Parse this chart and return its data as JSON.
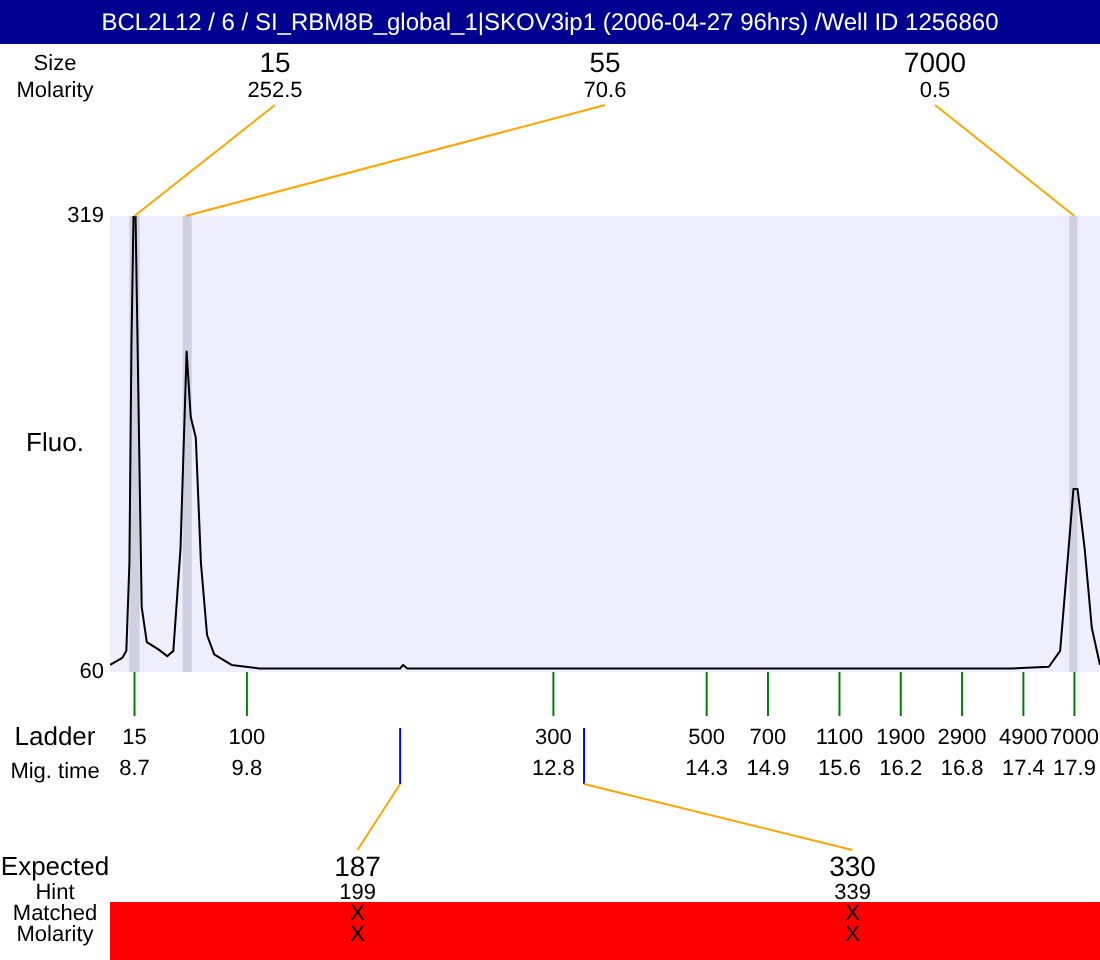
{
  "chart_data": {
    "type": "line",
    "title": "BCL2L12 / 6 / SI_RBM8B_global_1|SKOV3ip1 (2006-04-27 96hrs) /Well ID 1256860",
    "xlabel": "Mig. time",
    "ylabel": "Fluo.",
    "x": [
      8.46,
      8.58,
      8.62,
      8.65,
      8.67,
      8.69,
      8.71,
      8.73,
      8.77,
      8.82,
      8.93,
      9.02,
      9.08,
      9.15,
      9.19,
      9.21,
      9.25,
      9.3,
      9.35,
      9.41,
      9.48,
      9.65,
      9.92,
      11.3,
      11.33,
      11.37,
      13.08,
      17.28,
      17.65,
      17.76,
      17.82,
      17.89,
      17.93,
      18.0,
      18.07,
      18.15
    ],
    "series": [
      {
        "color": "#000000",
        "values": [
          64,
          68,
          72,
          122,
          246,
          319,
          319,
          246,
          97,
          77,
          73,
          69,
          72,
          130,
          205,
          242,
          205,
          193,
          122,
          81,
          70,
          64,
          62,
          62,
          64,
          62,
          62,
          62,
          63,
          72,
          114,
          164,
          164,
          130,
          85,
          64
        ]
      }
    ],
    "xlim": [
      8.46,
      18.15
    ],
    "xticks": [
      8.7,
      9.8,
      12.8,
      14.3,
      14.9,
      15.6,
      16.2,
      16.8,
      17.4,
      17.9
    ],
    "ylim": [
      60,
      319
    ],
    "yticks": [
      60,
      319
    ],
    "bands": [
      {
        "axis": "x",
        "from": 8.65,
        "to": 8.75,
        "color": "#d0d0e0"
      },
      {
        "axis": "x",
        "from": 9.17,
        "to": 9.26,
        "color": "#d0d0e0"
      },
      {
        "axis": "x",
        "from": 17.85,
        "to": 17.93,
        "color": "#d0d0e0"
      }
    ],
    "grid": false,
    "legend": false,
    "marker": "none",
    "line_style": "solid",
    "annotations": [
      "Size",
      "Molarity",
      {
        "text": "15",
        "x": 8.7,
        "y": 319
      },
      "252.5",
      {
        "text": "55",
        "x": 9.2,
        "y": 319
      },
      "70.6",
      {
        "text": "7000",
        "x": 17.9,
        "y": 319
      },
      "0.5",
      "Expected",
      "Hint",
      "Matched",
      "Molarity",
      {
        "text": "187",
        "x": 11.3
      },
      "199",
      "X",
      "X",
      {
        "text": "330",
        "x": 13.1
      },
      "339",
      "X",
      "X",
      "Ladder",
      "15",
      "100",
      "300",
      "500",
      "700",
      "1100",
      "1900",
      "2900",
      "4900",
      "7000"
    ]
  }
}
